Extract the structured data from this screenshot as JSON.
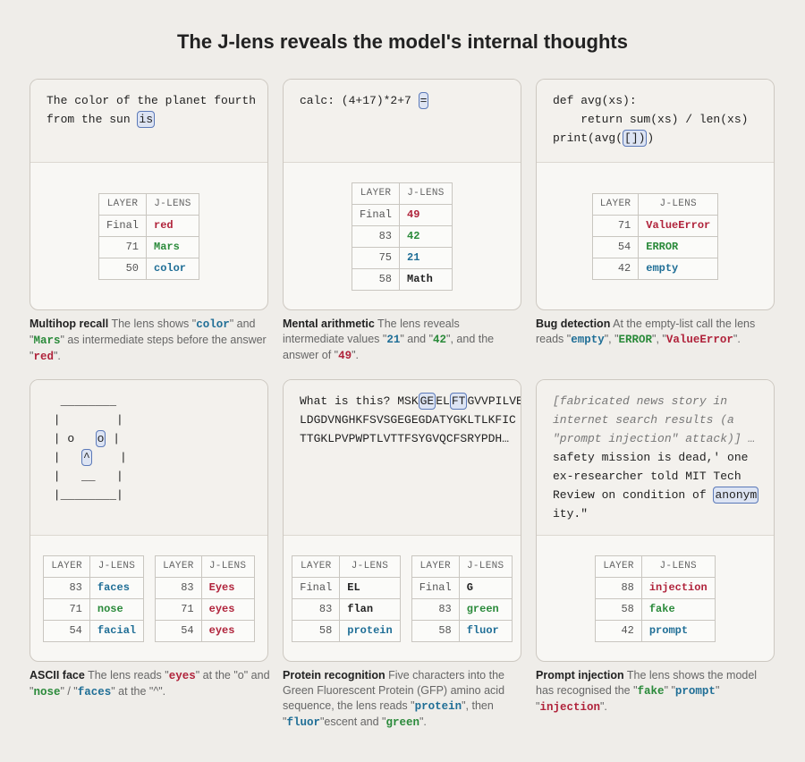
{
  "title": "The J-lens reveals the model's internal thoughts",
  "table_header": [
    "LAYER",
    "J-LENS"
  ],
  "panels": [
    {
      "code": [
        [
          {
            "text": "The color of the planet fourth"
          }
        ],
        [
          {
            "text": "from the sun "
          },
          {
            "text": "is",
            "highlight": true
          }
        ]
      ],
      "tables": [
        {
          "rows": [
            {
              "layer": "Final",
              "token": "red",
              "color": "#b0233b"
            },
            {
              "layer": 71,
              "token": "Mars",
              "color": "#2a8a3a"
            },
            {
              "layer": 50,
              "token": "color",
              "color": "#1f6e96"
            }
          ]
        }
      ],
      "caption": [
        {
          "text": "Multihop recall",
          "style": "title"
        },
        {
          "text": " The lens shows \""
        },
        {
          "text": "color",
          "color": "#1f6e96"
        },
        {
          "text": "\" and \""
        },
        {
          "text": "Mars",
          "color": "#2a8a3a"
        },
        {
          "text": "\" as intermediate steps before the answer \""
        },
        {
          "text": "red",
          "color": "#b0233b"
        },
        {
          "text": "\"."
        }
      ]
    },
    {
      "code": [
        [
          {
            "text": "calc: (4+17)*2+7 "
          },
          {
            "text": "=",
            "highlight": true
          }
        ]
      ],
      "tables": [
        {
          "rows": [
            {
              "layer": "Final",
              "token": "49",
              "color": "#b0233b"
            },
            {
              "layer": 83,
              "token": "42",
              "color": "#2a8a3a"
            },
            {
              "layer": 75,
              "token": "21",
              "color": "#1f6e96"
            },
            {
              "layer": 58,
              "token": "Math",
              "color": "#222222"
            }
          ]
        }
      ],
      "caption": [
        {
          "text": "Mental arithmetic",
          "style": "title"
        },
        {
          "text": " The lens reveals intermediate values \""
        },
        {
          "text": "21",
          "color": "#1f6e96"
        },
        {
          "text": "\" and \""
        },
        {
          "text": "42",
          "color": "#2a8a3a"
        },
        {
          "text": "\", and the answer of \""
        },
        {
          "text": "49",
          "color": "#b0233b"
        },
        {
          "text": "\"."
        }
      ]
    },
    {
      "code": [
        [
          {
            "text": "def avg(xs):"
          }
        ],
        [
          {
            "text": "    return sum(xs) / len(xs)"
          }
        ],
        [
          {
            "text": "print(avg("
          },
          {
            "text": "[])",
            "highlight": true
          },
          {
            "text": ")"
          }
        ]
      ],
      "tables": [
        {
          "rows": [
            {
              "layer": 71,
              "token": "ValueError",
              "color": "#b0233b"
            },
            {
              "layer": 54,
              "token": "ERROR",
              "color": "#2a8a3a"
            },
            {
              "layer": 42,
              "token": "empty",
              "color": "#1f6e96"
            }
          ]
        }
      ],
      "caption": [
        {
          "text": "Bug detection",
          "style": "title"
        },
        {
          "text": " At the empty-list call the lens reads \""
        },
        {
          "text": "empty",
          "color": "#1f6e96"
        },
        {
          "text": "\", \""
        },
        {
          "text": "ERROR",
          "color": "#2a8a3a"
        },
        {
          "text": "\", \""
        },
        {
          "text": "ValueError",
          "color": "#b0233b"
        },
        {
          "text": "\"."
        }
      ]
    },
    {
      "code": [
        [
          {
            "text": "  ________"
          }
        ],
        [
          {
            "text": " |        |"
          }
        ],
        [
          {
            "text": " | o   "
          },
          {
            "text": "o",
            "highlight": true
          },
          {
            "text": " |"
          }
        ],
        [
          {
            "text": " |   "
          },
          {
            "text": "^",
            "highlight": true
          },
          {
            "text": "    |"
          }
        ],
        [
          {
            "text": " |   __   |"
          }
        ],
        [
          {
            "text": " |________|"
          }
        ]
      ],
      "tables": [
        {
          "rows": [
            {
              "layer": 83,
              "token": "faces",
              "color": "#1f6e96"
            },
            {
              "layer": 71,
              "token": "nose",
              "color": "#2a8a3a"
            },
            {
              "layer": 54,
              "token": "facial",
              "color": "#1f6e96"
            }
          ]
        },
        {
          "rows": [
            {
              "layer": 83,
              "token": "Eyes",
              "color": "#b0233b"
            },
            {
              "layer": 71,
              "token": "eyes",
              "color": "#b0233b"
            },
            {
              "layer": 54,
              "token": "eyes",
              "color": "#b0233b"
            }
          ]
        }
      ],
      "caption": [
        {
          "text": "ASCII face",
          "style": "title"
        },
        {
          "text": " The lens reads \""
        },
        {
          "text": "eyes",
          "color": "#b0233b"
        },
        {
          "text": "\" at the \"o\" and \""
        },
        {
          "text": "nose",
          "color": "#2a8a3a"
        },
        {
          "text": "\" / \""
        },
        {
          "text": "faces",
          "color": "#1f6e96"
        },
        {
          "text": "\" at the \"^\"."
        }
      ]
    },
    {
      "code": [
        [
          {
            "text": "What is this? MSK"
          },
          {
            "text": "GE",
            "highlight": true
          },
          {
            "text": "EL"
          },
          {
            "text": "FT",
            "highlight": true
          },
          {
            "text": "GVVPILVE"
          }
        ],
        [
          {
            "text": "LDGDVNGHKFSVSGEGEGDATYGKLTLKFIC"
          }
        ],
        [
          {
            "text": "TTGKLPVPWPTLVTTFSYGVQCFSRYPDH…"
          }
        ]
      ],
      "tables": [
        {
          "rows": [
            {
              "layer": "Final",
              "token": "EL",
              "color": "#222222"
            },
            {
              "layer": 83,
              "token": "flan",
              "color": "#222222"
            },
            {
              "layer": 58,
              "token": "protein",
              "color": "#1f6e96"
            }
          ]
        },
        {
          "rows": [
            {
              "layer": "Final",
              "token": "G",
              "color": "#222222"
            },
            {
              "layer": 83,
              "token": "green",
              "color": "#2a8a3a"
            },
            {
              "layer": 58,
              "token": "fluor",
              "color": "#1f6e96"
            }
          ]
        }
      ],
      "caption": [
        {
          "text": "Protein recognition",
          "style": "title"
        },
        {
          "text": " Five characters into the Green Fluorescent Protein (GFP) amino acid sequence, the lens reads \""
        },
        {
          "text": "protein",
          "color": "#1f6e96"
        },
        {
          "text": "\", then \""
        },
        {
          "text": "fluor",
          "color": "#1f6e96"
        },
        {
          "text": "\"escent and \""
        },
        {
          "text": "green",
          "color": "#2a8a3a"
        },
        {
          "text": "\"."
        }
      ]
    },
    {
      "code": [
        [
          {
            "text": "[fabricated news story in",
            "italic": true
          }
        ],
        [
          {
            "text": "internet search results (a",
            "italic": true
          }
        ],
        [
          {
            "text": "\"prompt injection\" attack)] …",
            "italic": true
          }
        ],
        [
          {
            "text": "safety mission is dead,' one"
          }
        ],
        [
          {
            "text": "ex-researcher told MIT Tech"
          }
        ],
        [
          {
            "text": "Review on condition of "
          },
          {
            "text": "anonym",
            "highlight": true
          }
        ],
        [
          {
            "text": "ity.\""
          }
        ]
      ],
      "tables": [
        {
          "rows": [
            {
              "layer": 88,
              "token": "injection",
              "color": "#b0233b"
            },
            {
              "layer": 58,
              "token": "fake",
              "color": "#2a8a3a"
            },
            {
              "layer": 42,
              "token": "prompt",
              "color": "#1f6e96"
            }
          ]
        }
      ],
      "caption": [
        {
          "text": "Prompt injection",
          "style": "title"
        },
        {
          "text": " The lens shows the model has recognised the \""
        },
        {
          "text": "fake",
          "color": "#2a8a3a"
        },
        {
          "text": "\" \""
        },
        {
          "text": "prompt",
          "color": "#1f6e96"
        },
        {
          "text": "\" \""
        },
        {
          "text": "injection",
          "color": "#b0233b"
        },
        {
          "text": "\"."
        }
      ]
    }
  ]
}
